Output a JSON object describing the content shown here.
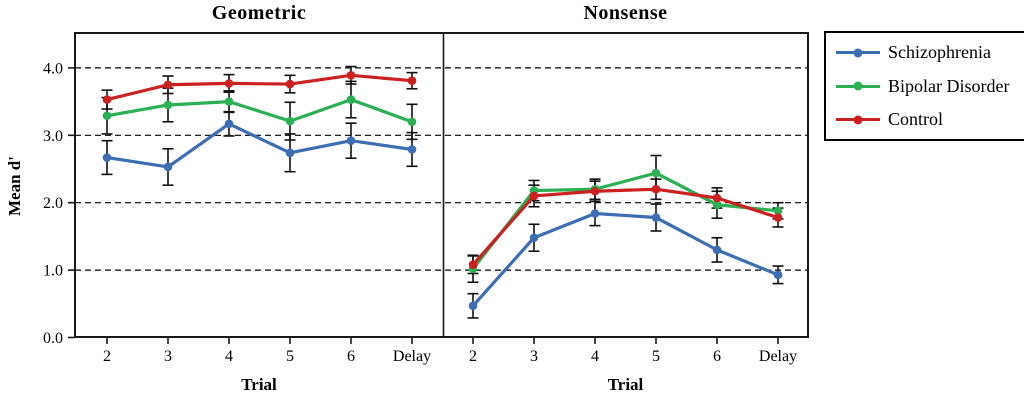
{
  "chart_data": [
    {
      "type": "line",
      "title": "Geometric",
      "xlabel": "Trial",
      "ylabel": "Mean d'",
      "categories": [
        "2",
        "3",
        "4",
        "5",
        "6",
        "Delay"
      ],
      "yticks": [
        0,
        1,
        2,
        3,
        4
      ],
      "ytick_labels": [
        "0.0",
        "1.0",
        "2.0",
        "3.0",
        "4.0"
      ],
      "ylim": [
        0,
        4.5
      ],
      "grid": "horizontal-dashed",
      "error_bars": true,
      "series": [
        {
          "name": "Schizophrenia",
          "color": "#3D6DB3",
          "values": [
            2.67,
            2.53,
            3.17,
            2.74,
            2.92,
            2.79
          ],
          "errors": [
            0.25,
            0.27,
            0.18,
            0.28,
            0.26,
            0.25
          ]
        },
        {
          "name": "Bipolar Disorder",
          "color": "#2BB054",
          "values": [
            3.29,
            3.45,
            3.5,
            3.21,
            3.53,
            3.2
          ],
          "errors": [
            0.27,
            0.25,
            0.16,
            0.28,
            0.27,
            0.26
          ]
        },
        {
          "name": "Control",
          "color": "#CC2121",
          "values": [
            3.53,
            3.75,
            3.77,
            3.76,
            3.89,
            3.81
          ],
          "errors": [
            0.14,
            0.13,
            0.13,
            0.13,
            0.13,
            0.12
          ]
        }
      ]
    },
    {
      "type": "line",
      "title": "Nonsense",
      "xlabel": "Trial",
      "ylabel": "",
      "categories": [
        "2",
        "3",
        "4",
        "5",
        "6",
        "Delay"
      ],
      "yticks": [
        0,
        1,
        2,
        3,
        4
      ],
      "ytick_labels": [
        "0.0",
        "1.0",
        "2.0",
        "3.0",
        "4.0"
      ],
      "ylim": [
        0,
        4.5
      ],
      "grid": "horizontal-dashed",
      "error_bars": true,
      "series": [
        {
          "name": "Schizophrenia",
          "color": "#3D6DB3",
          "values": [
            0.47,
            1.48,
            1.84,
            1.78,
            1.3,
            0.93
          ],
          "errors": [
            0.18,
            0.2,
            0.18,
            0.2,
            0.18,
            0.13
          ]
        },
        {
          "name": "Bipolar Disorder",
          "color": "#2BB054",
          "values": [
            1.02,
            2.18,
            2.2,
            2.44,
            1.97,
            1.88
          ],
          "errors": [
            0.2,
            0.15,
            0.15,
            0.26,
            0.2,
            0.12
          ]
        },
        {
          "name": "Control",
          "color": "#CC2121",
          "values": [
            1.08,
            2.1,
            2.17,
            2.2,
            2.07,
            1.78
          ],
          "errors": [
            0.13,
            0.16,
            0.15,
            0.15,
            0.15,
            0.14
          ]
        }
      ]
    }
  ],
  "legend": {
    "position": "right-outside",
    "items": [
      "Schizophrenia",
      "Bipolar Disorder",
      "Control"
    ]
  }
}
